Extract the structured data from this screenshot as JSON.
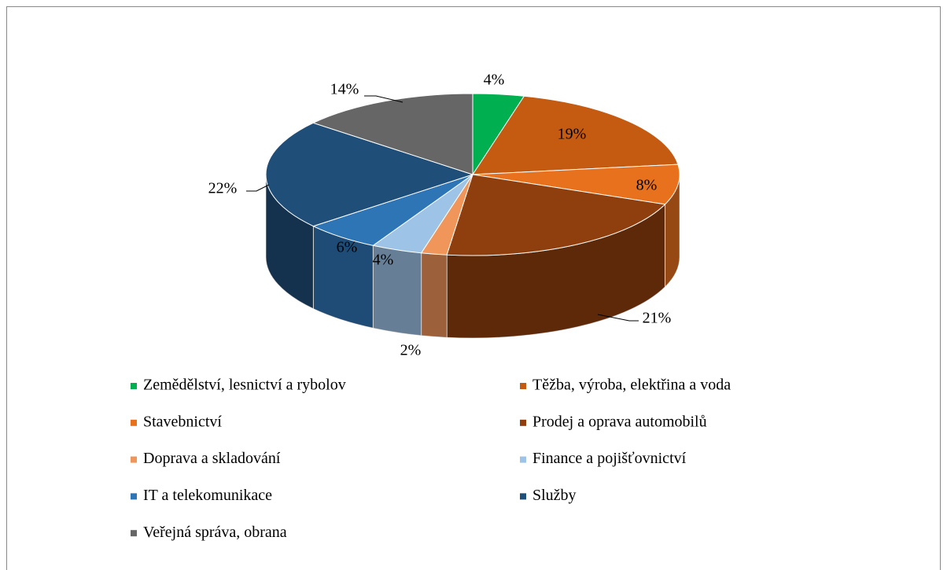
{
  "chart_data": {
    "type": "pie",
    "categories": [
      "Zemědělství, lesnictví a rybolov",
      "Těžba, výroba, elektřina a voda",
      "Stavebnictví",
      "Prodej a oprava automobilů",
      "Doprava a skladování",
      "Finance a pojišťovnictví",
      "IT a telekomunikace",
      "Služby",
      "Veřejná správa, obrana"
    ],
    "values": [
      4,
      19,
      8,
      21,
      2,
      4,
      6,
      22,
      14
    ],
    "value_labels": [
      "4%",
      "19%",
      "8%",
      "21%",
      "2%",
      "4%",
      "6%",
      "22%",
      "14%"
    ],
    "colors": [
      "#00b050",
      "#c55a11",
      "#e8711e",
      "#8f3f0e",
      "#f0965a",
      "#9dc3e6",
      "#2e75b6",
      "#1f4e79",
      "#666666"
    ],
    "legend": "bottom"
  }
}
